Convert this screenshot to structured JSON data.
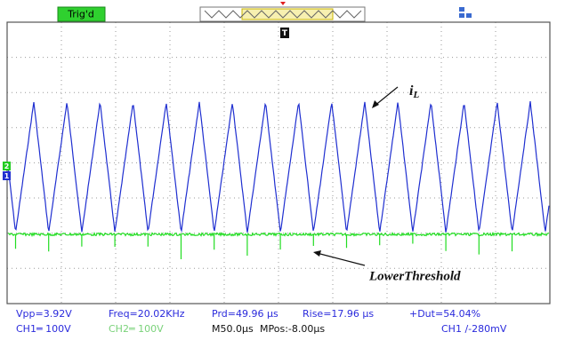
{
  "status": "Trig'd",
  "markers": {
    "trigger": "T",
    "ch2": "2",
    "ch1": "1"
  },
  "annotations": {
    "current_label": "i",
    "current_subscript": "L",
    "threshold_label": "LowerThreshold"
  },
  "measurements": {
    "vpp": "Vpp=3.92V",
    "freq": "Freq=20.02KHz",
    "period": "Prd=49.96 µs",
    "rise": "Rise=17.96 µs",
    "duty": "+Dut=54.04%"
  },
  "settings": {
    "ch1": "CH1═ 100V",
    "ch2": "CH2═ 100V",
    "timebase": "M50.0µs",
    "position": "MPos:-8.00µs",
    "trigger": "CH1 ∕-280mV"
  }
}
